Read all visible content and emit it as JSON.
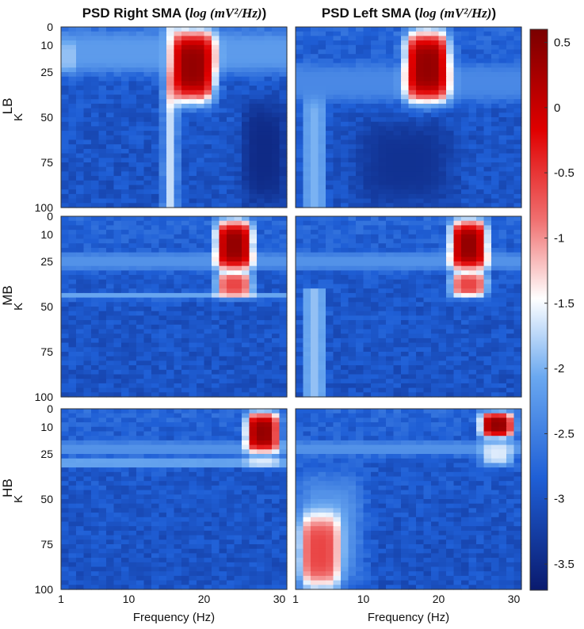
{
  "titles": {
    "right": {
      "prefix": "PSD Right SMA (",
      "math": "log (mV²/Hz)",
      "suffix": ")"
    },
    "left": {
      "prefix": "PSD Left SMA (",
      "math": "log (mV²/Hz)",
      "suffix": ")"
    }
  },
  "chart_data": {
    "type": "heatmap",
    "rows": [
      "LB",
      "MB",
      "HB"
    ],
    "columns": [
      "Right SMA",
      "Left SMA"
    ],
    "xlabel": "Frequency (Hz)",
    "ylabel": "K",
    "x_ticks": [
      1,
      10,
      20,
      30
    ],
    "y_ticks": [
      0,
      10,
      25,
      50,
      75,
      100
    ],
    "xlim": [
      1,
      31
    ],
    "ylim": [
      0,
      100
    ],
    "colorbar": {
      "min": -3.7,
      "max": 0.6,
      "ticks": [
        0.5,
        0,
        -0.5,
        -1,
        -1.5,
        -2,
        -2.5,
        -3,
        -3.5
      ],
      "colors": [
        "#0a1a6e",
        "#1f5fd6",
        "#6aa8f0",
        "#ffffff",
        "#f07070",
        "#e00000",
        "#7a0000"
      ]
    },
    "background_level": -3.0,
    "panels": [
      {
        "row": "LB",
        "column": "Right SMA",
        "features": [
          {
            "kind": "vband",
            "f0": 14.5,
            "f1": 16.5,
            "k0": 0,
            "k1": 100,
            "value": -1.7
          },
          {
            "kind": "hband",
            "f0": 1,
            "f1": 31,
            "k0": 2,
            "k1": 26,
            "value": -2.2
          },
          {
            "kind": "hband",
            "f0": 1,
            "f1": 3,
            "k0": 8,
            "k1": 25,
            "value": -1.9
          },
          {
            "kind": "blob",
            "f0": 15.5,
            "f1": 21.5,
            "k0": 2,
            "k1": 42,
            "value": 0.4
          },
          {
            "kind": "blob",
            "f0": 25,
            "f1": 31,
            "k0": 40,
            "k1": 100,
            "value": -3.5
          }
        ]
      },
      {
        "row": "LB",
        "column": "Left SMA",
        "features": [
          {
            "kind": "vband",
            "f0": 2,
            "f1": 5,
            "k0": 30,
            "k1": 100,
            "value": -2.0
          },
          {
            "kind": "hband",
            "f0": 1,
            "f1": 31,
            "k0": 20,
            "k1": 42,
            "value": -2.4
          },
          {
            "kind": "blob",
            "f0": 15.5,
            "f1": 21.5,
            "k0": 2,
            "k1": 42,
            "value": 0.4
          },
          {
            "kind": "blob",
            "f0": 9,
            "f1": 22,
            "k0": 52,
            "k1": 98,
            "value": -3.4
          }
        ]
      },
      {
        "row": "MB",
        "column": "Right SMA",
        "features": [
          {
            "kind": "hband",
            "f0": 1,
            "f1": 31,
            "k0": 20,
            "k1": 30,
            "value": -2.3
          },
          {
            "kind": "hband",
            "f0": 1,
            "f1": 31,
            "k0": 42,
            "k1": 46,
            "value": -2.1
          },
          {
            "kind": "blob",
            "f0": 21.5,
            "f1": 26.5,
            "k0": 2,
            "k1": 30,
            "value": 0.4
          },
          {
            "kind": "blob",
            "f0": 21.5,
            "f1": 26.5,
            "k0": 31,
            "k1": 45,
            "value": -0.6
          }
        ]
      },
      {
        "row": "MB",
        "column": "Left SMA",
        "features": [
          {
            "kind": "vband",
            "f0": 2,
            "f1": 5,
            "k0": 40,
            "k1": 100,
            "value": -1.9
          },
          {
            "kind": "hband",
            "f0": 1,
            "f1": 31,
            "k0": 20,
            "k1": 30,
            "value": -2.3
          },
          {
            "kind": "blob",
            "f0": 21.5,
            "f1": 26.5,
            "k0": 2,
            "k1": 30,
            "value": 0.4
          },
          {
            "kind": "blob",
            "f0": 21.5,
            "f1": 26.5,
            "k0": 31,
            "k1": 45,
            "value": -0.6
          }
        ]
      },
      {
        "row": "HB",
        "column": "Right SMA",
        "features": [
          {
            "kind": "hband",
            "f0": 1,
            "f1": 31,
            "k0": 18,
            "k1": 26,
            "value": -2.3
          },
          {
            "kind": "hband",
            "f0": 1,
            "f1": 31,
            "k0": 28,
            "k1": 32,
            "value": -2.0
          },
          {
            "kind": "blob",
            "f0": 25.5,
            "f1": 30,
            "k0": 2,
            "k1": 24,
            "value": 0.4
          },
          {
            "kind": "blob",
            "f0": 25.5,
            "f1": 30,
            "k0": 26,
            "k1": 32,
            "value": -1.6
          }
        ]
      },
      {
        "row": "HB",
        "column": "Left SMA",
        "features": [
          {
            "kind": "blob",
            "f0": 1,
            "f1": 10,
            "k0": 35,
            "k1": 100,
            "value": -2.2
          },
          {
            "kind": "blob",
            "f0": 1.5,
            "f1": 7,
            "k0": 58,
            "k1": 100,
            "value": -0.6
          },
          {
            "kind": "hband",
            "f0": 1,
            "f1": 31,
            "k0": 18,
            "k1": 26,
            "value": -2.3
          },
          {
            "kind": "blob",
            "f0": 25.5,
            "f1": 30,
            "k0": 2,
            "k1": 16,
            "value": 0.4
          },
          {
            "kind": "blob",
            "f0": 25.5,
            "f1": 30,
            "k0": 18,
            "k1": 32,
            "value": -1.6
          }
        ]
      }
    ]
  }
}
